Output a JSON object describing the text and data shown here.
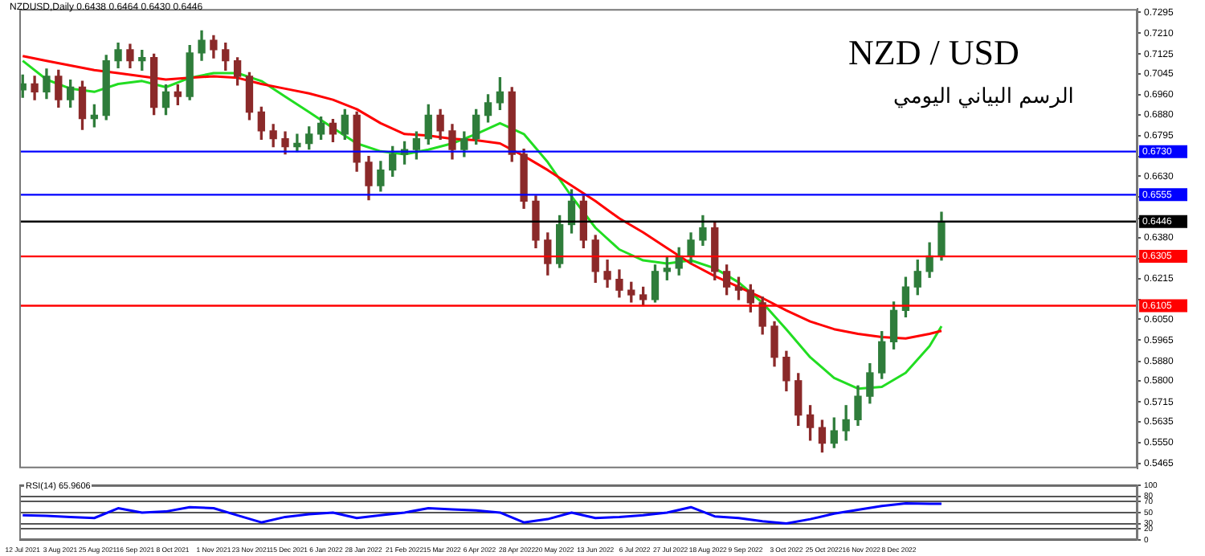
{
  "chart_data": [
    {
      "type": "candlestick",
      "title": "NZD / USD",
      "subtitle": "الرسم البياني اليومي",
      "annotations": [
        "NZDUSD,Daily  0.6438 0.6464 0.6430 0.6446"
      ],
      "x": [
        "2021-07-12",
        "2021-07-19",
        "2021-07-26",
        "2021-08-02",
        "2021-08-09",
        "2021-08-16",
        "2021-08-23",
        "2021-08-30",
        "2021-09-06",
        "2021-09-13",
        "2021-09-20",
        "2021-09-27",
        "2021-10-04",
        "2021-10-11",
        "2021-10-18",
        "2021-10-25",
        "2021-11-01",
        "2021-11-08",
        "2021-11-15",
        "2021-11-22",
        "2021-11-29",
        "2021-12-06",
        "2021-12-13",
        "2021-12-20",
        "2021-12-27",
        "2022-01-03",
        "2022-01-10",
        "2022-01-17",
        "2022-01-24",
        "2022-01-31",
        "2022-02-07",
        "2022-02-14",
        "2022-02-21",
        "2022-02-28",
        "2022-03-07",
        "2022-03-14",
        "2022-03-21",
        "2022-03-28",
        "2022-04-04",
        "2022-04-11",
        "2022-04-18",
        "2022-04-25",
        "2022-05-02",
        "2022-05-09",
        "2022-05-16",
        "2022-05-23",
        "2022-05-30",
        "2022-06-06",
        "2022-06-13",
        "2022-06-20",
        "2022-06-27",
        "2022-07-04",
        "2022-07-11",
        "2022-07-18",
        "2022-07-25",
        "2022-08-01",
        "2022-08-08",
        "2022-08-15",
        "2022-08-22",
        "2022-08-29",
        "2022-09-05",
        "2022-09-12",
        "2022-09-19",
        "2022-09-26",
        "2022-10-03",
        "2022-10-10",
        "2022-10-17",
        "2022-10-24",
        "2022-10-31",
        "2022-11-07",
        "2022-11-14",
        "2022-11-21",
        "2022-11-28",
        "2022-12-05",
        "2022-12-12",
        "2022-12-19",
        "2022-12-26",
        "2023-01-02"
      ],
      "ohlc": [
        [
          0.698,
          0.704,
          0.695,
          0.7004
        ],
        [
          0.7004,
          0.7035,
          0.694,
          0.6972
        ],
        [
          0.6972,
          0.7065,
          0.6945,
          0.7035
        ],
        [
          0.7035,
          0.706,
          0.691,
          0.694
        ],
        [
          0.694,
          0.702,
          0.691,
          0.6991
        ],
        [
          0.6991,
          0.7015,
          0.682,
          0.6864
        ],
        [
          0.6864,
          0.692,
          0.683,
          0.6877
        ],
        [
          0.6877,
          0.712,
          0.686,
          0.7098
        ],
        [
          0.7098,
          0.717,
          0.707,
          0.7143
        ],
        [
          0.7143,
          0.7165,
          0.707,
          0.7098
        ],
        [
          0.7098,
          0.714,
          0.706,
          0.7111
        ],
        [
          0.7111,
          0.7125,
          0.688,
          0.6909
        ],
        [
          0.6909,
          0.7,
          0.688,
          0.6972
        ],
        [
          0.6972,
          0.7,
          0.692,
          0.6953
        ],
        [
          0.6953,
          0.716,
          0.694,
          0.713
        ],
        [
          0.713,
          0.7219,
          0.71,
          0.7181
        ],
        [
          0.7181,
          0.72,
          0.711,
          0.7143
        ],
        [
          0.7143,
          0.717,
          0.706,
          0.7098
        ],
        [
          0.7098,
          0.711,
          0.7,
          0.7035
        ],
        [
          0.7035,
          0.705,
          0.686,
          0.689
        ],
        [
          0.689,
          0.691,
          0.678,
          0.6814
        ],
        [
          0.6814,
          0.684,
          0.675,
          0.6782
        ],
        [
          0.6782,
          0.681,
          0.672,
          0.675
        ],
        [
          0.675,
          0.68,
          0.673,
          0.6763
        ],
        [
          0.6763,
          0.683,
          0.674,
          0.6801
        ],
        [
          0.6801,
          0.687,
          0.678,
          0.6845
        ],
        [
          0.6845,
          0.686,
          0.677,
          0.6801
        ],
        [
          0.6801,
          0.69,
          0.678,
          0.6877
        ],
        [
          0.6877,
          0.689,
          0.665,
          0.6687
        ],
        [
          0.6687,
          0.671,
          0.6535,
          0.6592
        ],
        [
          0.6592,
          0.669,
          0.657,
          0.6655
        ],
        [
          0.6655,
          0.675,
          0.663,
          0.6719
        ],
        [
          0.6719,
          0.677,
          0.668,
          0.6738
        ],
        [
          0.6738,
          0.681,
          0.67,
          0.6782
        ],
        [
          0.6782,
          0.692,
          0.676,
          0.6877
        ],
        [
          0.6877,
          0.69,
          0.678,
          0.6814
        ],
        [
          0.6814,
          0.684,
          0.67,
          0.6738
        ],
        [
          0.6738,
          0.681,
          0.671,
          0.6782
        ],
        [
          0.6782,
          0.69,
          0.676,
          0.6877
        ],
        [
          0.6877,
          0.696,
          0.685,
          0.6928
        ],
        [
          0.6928,
          0.703,
          0.69,
          0.6972
        ],
        [
          0.6972,
          0.699,
          0.669,
          0.6719
        ],
        [
          0.6719,
          0.674,
          0.65,
          0.6529
        ],
        [
          0.6529,
          0.655,
          0.634,
          0.6371
        ],
        [
          0.6371,
          0.64,
          0.623,
          0.6276
        ],
        [
          0.6276,
          0.647,
          0.626,
          0.6434
        ],
        [
          0.6434,
          0.6575,
          0.64,
          0.6529
        ],
        [
          0.6529,
          0.655,
          0.634,
          0.6371
        ],
        [
          0.6371,
          0.639,
          0.62,
          0.6244
        ],
        [
          0.6244,
          0.629,
          0.618,
          0.6212
        ],
        [
          0.6212,
          0.625,
          0.614,
          0.6168
        ],
        [
          0.6168,
          0.62,
          0.612,
          0.6149
        ],
        [
          0.6149,
          0.618,
          0.6105,
          0.613
        ],
        [
          0.613,
          0.627,
          0.612,
          0.6244
        ],
        [
          0.6244,
          0.63,
          0.621,
          0.6257
        ],
        [
          0.6257,
          0.634,
          0.623,
          0.6307
        ],
        [
          0.6307,
          0.64,
          0.628,
          0.6371
        ],
        [
          0.6371,
          0.647,
          0.635,
          0.6421
        ],
        [
          0.6421,
          0.644,
          0.621,
          0.6244
        ],
        [
          0.6244,
          0.627,
          0.615,
          0.6181
        ],
        [
          0.6181,
          0.622,
          0.613,
          0.6168
        ],
        [
          0.6168,
          0.619,
          0.608,
          0.6117
        ],
        [
          0.6117,
          0.614,
          0.599,
          0.6022
        ],
        [
          0.6022,
          0.604,
          0.586,
          0.5896
        ],
        [
          0.5896,
          0.592,
          0.576,
          0.5801
        ],
        [
          0.5801,
          0.583,
          0.562,
          0.5662
        ],
        [
          0.5662,
          0.57,
          0.556,
          0.5611
        ],
        [
          0.5611,
          0.564,
          0.5512,
          0.5548
        ],
        [
          0.5548,
          0.565,
          0.553,
          0.5598
        ],
        [
          0.5598,
          0.57,
          0.556,
          0.5643
        ],
        [
          0.5643,
          0.578,
          0.562,
          0.5738
        ],
        [
          0.5738,
          0.587,
          0.571,
          0.5833
        ],
        [
          0.5833,
          0.6,
          0.581,
          0.5959
        ],
        [
          0.5959,
          0.612,
          0.593,
          0.6086
        ],
        [
          0.6086,
          0.622,
          0.606,
          0.6181
        ],
        [
          0.6181,
          0.629,
          0.615,
          0.6244
        ],
        [
          0.6244,
          0.636,
          0.622,
          0.6307
        ],
        [
          0.6307,
          0.6484,
          0.629,
          0.6446
        ]
      ],
      "colors": [
        "#2f7d3b",
        "#8b2a2a",
        "#2f7d3b",
        "#8b2a2a",
        "#2f7d3b",
        "#8b2a2a",
        "#2f7d3b",
        "#2f7d3b",
        "#2f7d3b",
        "#8b2a2a",
        "#2f7d3b",
        "#8b2a2a",
        "#2f7d3b",
        "#8b2a2a",
        "#2f7d3b",
        "#2f7d3b",
        "#8b2a2a",
        "#8b2a2a",
        "#8b2a2a",
        "#8b2a2a",
        "#8b2a2a",
        "#8b2a2a",
        "#8b2a2a",
        "#2f7d3b",
        "#2f7d3b",
        "#2f7d3b",
        "#8b2a2a",
        "#2f7d3b",
        "#8b2a2a",
        "#8b2a2a",
        "#2f7d3b",
        "#2f7d3b",
        "#2f7d3b",
        "#2f7d3b",
        "#2f7d3b",
        "#8b2a2a",
        "#8b2a2a",
        "#2f7d3b",
        "#2f7d3b",
        "#2f7d3b",
        "#2f7d3b",
        "#8b2a2a",
        "#8b2a2a",
        "#8b2a2a",
        "#8b2a2a",
        "#2f7d3b",
        "#2f7d3b",
        "#8b2a2a",
        "#8b2a2a",
        "#8b2a2a",
        "#8b2a2a",
        "#8b2a2a",
        "#8b2a2a",
        "#2f7d3b",
        "#2f7d3b",
        "#2f7d3b",
        "#2f7d3b",
        "#2f7d3b",
        "#8b2a2a",
        "#8b2a2a",
        "#8b2a2a",
        "#8b2a2a",
        "#8b2a2a",
        "#8b2a2a",
        "#8b2a2a",
        "#8b2a2a",
        "#8b2a2a",
        "#8b2a2a",
        "#2f7d3b",
        "#2f7d3b",
        "#2f7d3b",
        "#2f7d3b",
        "#2f7d3b",
        "#2f7d3b",
        "#2f7d3b",
        "#2f7d3b",
        "#2f7d3b",
        "#2f7d3b"
      ],
      "series": [
        {
          "type": "line",
          "color": "#ff0000",
          "x": [
            "2021-07-12",
            "2021-07-26",
            "2021-08-09",
            "2021-08-23",
            "2021-09-06",
            "2021-09-20",
            "2021-10-04",
            "2021-10-18",
            "2021-11-01",
            "2021-11-15",
            "2021-11-29",
            "2021-12-13",
            "2021-12-27",
            "2022-01-10",
            "2022-01-24",
            "2022-02-07",
            "2022-02-21",
            "2022-03-07",
            "2022-03-21",
            "2022-04-04",
            "2022-04-18",
            "2022-05-02",
            "2022-05-16",
            "2022-05-30",
            "2022-06-13",
            "2022-06-27",
            "2022-07-11",
            "2022-07-25",
            "2022-08-08",
            "2022-08-22",
            "2022-09-05",
            "2022-09-19",
            "2022-10-03",
            "2022-10-17",
            "2022-10-31",
            "2022-11-14",
            "2022-11-28",
            "2022-12-12",
            "2022-12-26",
            "2023-01-02"
          ],
          "values": [
            0.7117,
            0.7098,
            0.7079,
            0.706,
            0.7048,
            0.7035,
            0.7022,
            0.7029,
            0.7035,
            0.7029,
            0.7004,
            0.6985,
            0.6966,
            0.694,
            0.6902,
            0.6845,
            0.6801,
            0.6795,
            0.6782,
            0.6776,
            0.6763,
            0.6712,
            0.6655,
            0.6592,
            0.6529,
            0.6459,
            0.6402,
            0.6339,
            0.6276,
            0.6225,
            0.6181,
            0.6136,
            0.6086,
            0.6041,
            0.601,
            0.5991,
            0.5978,
            0.5972,
            0.5991,
            0.6003
          ]
        },
        {
          "type": "line",
          "color": "#22dd22",
          "x": [
            "2021-07-12",
            "2021-07-26",
            "2021-08-09",
            "2021-08-23",
            "2021-09-06",
            "2021-09-20",
            "2021-10-04",
            "2021-10-18",
            "2021-11-01",
            "2021-11-15",
            "2021-11-29",
            "2021-12-13",
            "2021-12-27",
            "2022-01-10",
            "2022-01-24",
            "2022-02-07",
            "2022-02-21",
            "2022-03-07",
            "2022-03-21",
            "2022-04-04",
            "2022-04-18",
            "2022-05-02",
            "2022-05-16",
            "2022-05-30",
            "2022-06-13",
            "2022-06-27",
            "2022-07-11",
            "2022-07-25",
            "2022-08-08",
            "2022-08-22",
            "2022-09-05",
            "2022-09-19",
            "2022-10-03",
            "2022-10-17",
            "2022-10-31",
            "2022-11-14",
            "2022-11-28",
            "2022-12-12",
            "2022-12-26",
            "2023-01-02"
          ],
          "values": [
            0.7098,
            0.7022,
            0.6985,
            0.6972,
            0.7004,
            0.7016,
            0.6991,
            0.7029,
            0.7048,
            0.7048,
            0.7016,
            0.6953,
            0.689,
            0.6826,
            0.6763,
            0.6731,
            0.6719,
            0.6738,
            0.6763,
            0.6801,
            0.6845,
            0.6801,
            0.6687,
            0.6548,
            0.6421,
            0.6333,
            0.6289,
            0.6276,
            0.6289,
            0.6257,
            0.62,
            0.6117,
            0.6009,
            0.5896,
            0.5812,
            0.5769,
            0.5776,
            0.5833,
            0.5941,
            0.6022
          ]
        }
      ],
      "ref_lines": [
        {
          "axis": "y",
          "value": 0.673,
          "label": "0.6730",
          "color": "#0000ff"
        },
        {
          "axis": "y",
          "value": 0.6555,
          "label": "0.6555",
          "color": "#0000ff"
        },
        {
          "axis": "y",
          "value": 0.6446,
          "label": "0.6446",
          "color": "#000000"
        },
        {
          "axis": "y",
          "value": 0.6305,
          "label": "0.6305",
          "color": "#ff0000"
        },
        {
          "axis": "y",
          "value": 0.6105,
          "label": "0.6105",
          "color": "#ff0000"
        }
      ],
      "xlim": [
        "2021-07-10",
        "2023-04-27"
      ],
      "ylim": [
        0.5446,
        0.7308
      ],
      "yticks": [
        {
          "value": 0.5465,
          "label": "0.5465"
        },
        {
          "value": 0.555,
          "label": "0.5550"
        },
        {
          "value": 0.5635,
          "label": "0.5635"
        },
        {
          "value": 0.5715,
          "label": "0.5715"
        },
        {
          "value": 0.58,
          "label": "0.5800"
        },
        {
          "value": 0.588,
          "label": "0.5880"
        },
        {
          "value": 0.5965,
          "label": "0.5965"
        },
        {
          "value": 0.605,
          "label": "0.6050"
        },
        {
          "value": 0.613,
          "label": null
        },
        {
          "value": 0.6215,
          "label": "0.6215"
        },
        {
          "value": 0.6295,
          "label": null
        },
        {
          "value": 0.638,
          "label": "0.6380"
        },
        {
          "value": 0.646,
          "label": null
        },
        {
          "value": 0.6545,
          "label": null
        },
        {
          "value": 0.663,
          "label": "0.6630"
        },
        {
          "value": 0.671,
          "label": null
        },
        {
          "value": 0.6795,
          "label": "0.6795"
        },
        {
          "value": 0.688,
          "label": "0.6880"
        },
        {
          "value": 0.696,
          "label": "0.6960"
        },
        {
          "value": 0.7045,
          "label": "0.7045"
        },
        {
          "value": 0.7125,
          "label": "0.7125"
        },
        {
          "value": 0.721,
          "label": "0.7210"
        },
        {
          "value": 0.7295,
          "label": "0.7295"
        }
      ],
      "tick_labels": "y"
    },
    {
      "type": "line",
      "title": "RSI(14) 65.9606",
      "x": [
        "2021-07-12",
        "2021-07-26",
        "2021-08-09",
        "2021-08-23",
        "2021-09-06",
        "2021-09-20",
        "2021-10-04",
        "2021-10-18",
        "2021-11-01",
        "2021-11-15",
        "2021-11-29",
        "2021-12-13",
        "2021-12-27",
        "2022-01-10",
        "2022-01-24",
        "2022-02-07",
        "2022-02-21",
        "2022-03-07",
        "2022-03-21",
        "2022-04-04",
        "2022-04-18",
        "2022-05-02",
        "2022-05-16",
        "2022-05-30",
        "2022-06-13",
        "2022-06-27",
        "2022-07-11",
        "2022-07-25",
        "2022-08-08",
        "2022-08-22",
        "2022-09-05",
        "2022-09-19",
        "2022-10-03",
        "2022-10-17",
        "2022-10-31",
        "2022-11-14",
        "2022-11-28",
        "2022-12-12",
        "2022-12-26",
        "2023-01-02"
      ],
      "series": [
        {
          "color": "#0000ff",
          "values": [
            45,
            44,
            42,
            40,
            58,
            50,
            52,
            60,
            58,
            45,
            32,
            42,
            47,
            50,
            40,
            45,
            50,
            58,
            56,
            54,
            50,
            32,
            38,
            50,
            40,
            42,
            45,
            50,
            60,
            43,
            40,
            34,
            30,
            38,
            48,
            55,
            62,
            67,
            66,
            66
          ]
        }
      ],
      "xlim": [
        "2021-07-10",
        "2023-04-27"
      ],
      "ylim": [
        0,
        100
      ],
      "yticks": [
        0,
        20,
        30,
        50,
        70,
        80,
        100
      ],
      "grid": "y",
      "xticks": [
        {
          "value": "2021-07-12",
          "label": "12 Jul 2021"
        },
        {
          "value": "2021-08-03",
          "label": "3 Aug 2021"
        },
        {
          "value": "2021-08-25",
          "label": "25 Aug 2021"
        },
        {
          "value": "2021-09-16",
          "label": "16 Sep 2021"
        },
        {
          "value": "2021-10-08",
          "label": "8 Oct 2021"
        },
        {
          "value": "2021-11-01",
          "label": "1 Nov 2021"
        },
        {
          "value": "2021-11-23",
          "label": "23 Nov 2021"
        },
        {
          "value": "2021-12-15",
          "label": "15 Dec 2021"
        },
        {
          "value": "2022-01-06",
          "label": "6 Jan 2022"
        },
        {
          "value": "2022-01-28",
          "label": "28 Jan 2022"
        },
        {
          "value": "2022-02-21",
          "label": "21 Feb 2022"
        },
        {
          "value": "2022-03-15",
          "label": "15 Mar 2022"
        },
        {
          "value": "2022-04-06",
          "label": "6 Apr 2022"
        },
        {
          "value": "2022-04-28",
          "label": "28 Apr 2022"
        },
        {
          "value": "2022-05-20",
          "label": "20 May 2022"
        },
        {
          "value": "2022-06-13",
          "label": "13 Jun 2022"
        },
        {
          "value": "2022-07-06",
          "label": "6 Jul 2022"
        },
        {
          "value": "2022-07-27",
          "label": "27 Jul 2022"
        },
        {
          "value": "2022-08-18",
          "label": "18 Aug 2022"
        },
        {
          "value": "2022-09-09",
          "label": "9 Sep 2022"
        },
        {
          "value": "2022-10-03",
          "label": "3 Oct 2022"
        },
        {
          "value": "2022-10-25",
          "label": "25 Oct 2022"
        },
        {
          "value": "2022-11-16",
          "label": "16 Nov 2022"
        },
        {
          "value": "2022-12-08",
          "label": "8 Dec 2022"
        }
      ]
    }
  ]
}
